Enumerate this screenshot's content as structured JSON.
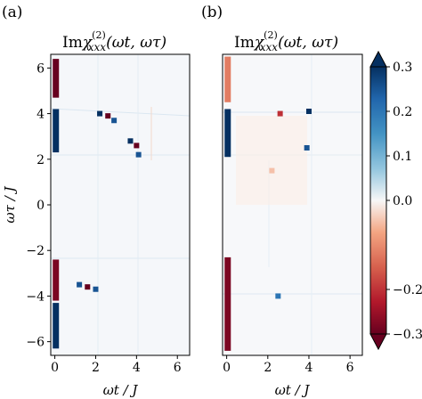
{
  "figure": {
    "colormap": {
      "name": "RdBu",
      "low_color": "#67001f",
      "mid_color": "#f7f7f7",
      "high_color": "#053061",
      "range": [
        -0.3,
        0.3
      ],
      "ticks": [
        "0.3",
        "0.2",
        "0.1",
        "0.0",
        "−0.2",
        "−0.3"
      ],
      "tick_values": [
        0.3,
        0.2,
        0.1,
        0.0,
        -0.2,
        -0.3
      ],
      "extend": "both"
    }
  },
  "chart_data": [
    {
      "type": "heatmap",
      "panel_label": "(a)",
      "title_prefix": "Im",
      "title_main": "χ",
      "title_sup": "(2)",
      "title_sub": "xxx",
      "title_args": "(ωt, ωτ)",
      "xlabel": "ωt / J",
      "ylabel": "ωτ / J",
      "xlim": [
        -0.2,
        6.6
      ],
      "ylim": [
        -6.6,
        6.6
      ],
      "xticks": [
        0,
        2,
        4,
        6
      ],
      "yticks": [
        6,
        4,
        2,
        0,
        -2,
        -4,
        -6
      ],
      "features": [
        {
          "x": 0.05,
          "y0": 2.3,
          "y1": 4.2,
          "value": 0.32
        },
        {
          "x": 0.05,
          "y0": -6.3,
          "y1": -4.3,
          "value": 0.3
        },
        {
          "x": 0.05,
          "y0": 4.7,
          "y1": 6.4,
          "value": -0.3
        },
        {
          "x": 0.05,
          "y0": -4.2,
          "y1": -2.4,
          "value": -0.28
        },
        {
          "x": 2.2,
          "y": 4.0,
          "value": 0.3
        },
        {
          "x": 2.6,
          "y": 3.9,
          "value": -0.3
        },
        {
          "x": 2.9,
          "y": 3.7,
          "value": 0.25
        },
        {
          "x": 3.7,
          "y": 2.8,
          "value": 0.3
        },
        {
          "x": 4.0,
          "y": 2.6,
          "value": -0.3
        },
        {
          "x": 4.1,
          "y": 2.2,
          "value": 0.25
        },
        {
          "x": 1.2,
          "y": -3.5,
          "value": 0.25
        },
        {
          "x": 1.6,
          "y": -3.6,
          "value": -0.3
        },
        {
          "x": 2.0,
          "y": -3.7,
          "value": 0.25
        }
      ]
    },
    {
      "type": "heatmap",
      "panel_label": "(b)",
      "title_prefix": "Im",
      "title_main": "χ",
      "title_sup": "(2)",
      "title_sub": "xxx",
      "title_args": "(ωt, ωτ)",
      "xlabel": "ωt / J",
      "xlim": [
        -0.2,
        6.6
      ],
      "ylim": [
        -6.6,
        6.6
      ],
      "xticks": [
        0,
        2,
        4,
        6
      ],
      "features": [
        {
          "x": 0.05,
          "y0": 2.1,
          "y1": 4.2,
          "value": 0.3
        },
        {
          "x": 0.05,
          "y0": -6.4,
          "y1": -2.3,
          "value": -0.28
        },
        {
          "x": 0.05,
          "y0": 4.5,
          "y1": 6.5,
          "value": -0.12
        },
        {
          "x": 4.0,
          "y": 4.1,
          "value": 0.3
        },
        {
          "x": 2.6,
          "y": 4.0,
          "value": -0.2
        },
        {
          "x": 3.9,
          "y": 2.5,
          "value": 0.25
        },
        {
          "x": 2.5,
          "y": -4.0,
          "value": 0.2
        },
        {
          "x": 2.2,
          "y": 1.5,
          "value": -0.05
        }
      ]
    }
  ]
}
